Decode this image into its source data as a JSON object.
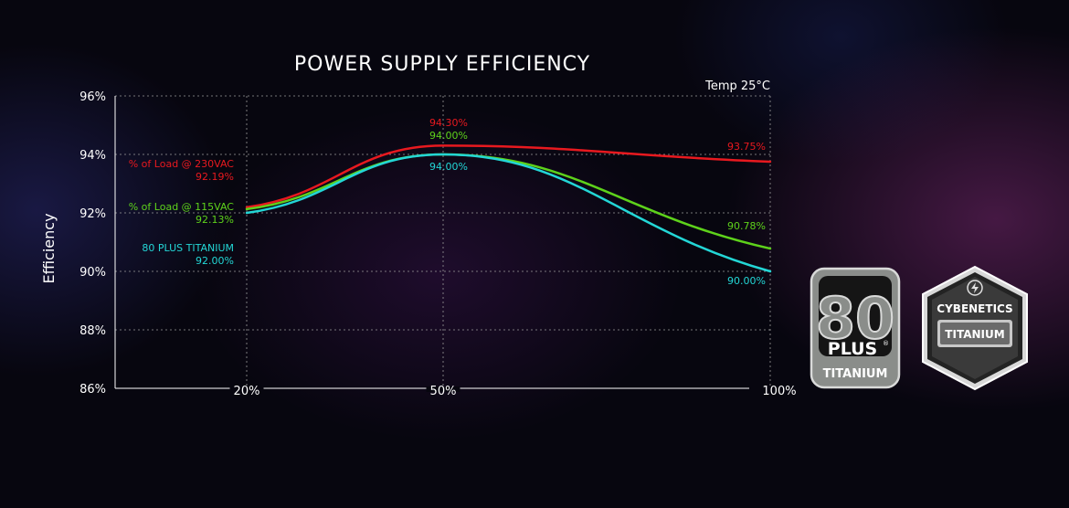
{
  "chart_data": {
    "type": "line",
    "title": "POWER SUPPLY EFFICIENCY",
    "ylabel": "Efficiency",
    "xlabel": "",
    "annotation": "Temp 25°C",
    "categories": [
      "20%",
      "50%",
      "100%"
    ],
    "ylim": [
      86,
      96
    ],
    "yticks": [
      "86%",
      "88%",
      "90%",
      "92%",
      "94%",
      "96%"
    ],
    "grid": true,
    "series": [
      {
        "name": "% of Load @ 230VAC",
        "color": "#e8191f",
        "values": [
          92.19,
          94.3,
          93.75
        ],
        "value_labels": [
          "92.19%",
          "94.30%",
          "93.75%"
        ]
      },
      {
        "name": "% of Load @ 115VAC",
        "color": "#5ed21b",
        "values": [
          92.13,
          94.0,
          90.78
        ],
        "value_labels": [
          "92.13%",
          "94.00%",
          "90.78%"
        ]
      },
      {
        "name": "80 PLUS TITANIUM",
        "color": "#23d6d6",
        "values": [
          92.0,
          94.0,
          90.0
        ],
        "value_labels": [
          "92.00%",
          "94.00%",
          "90.00%"
        ]
      }
    ]
  },
  "badges": {
    "plus80": {
      "number": "80",
      "plus": "PLUS",
      "registered": "®",
      "tier": "TITANIUM"
    },
    "cybenetics": {
      "brand": "CYBENETICS",
      "tier": "TITANIUM"
    }
  }
}
